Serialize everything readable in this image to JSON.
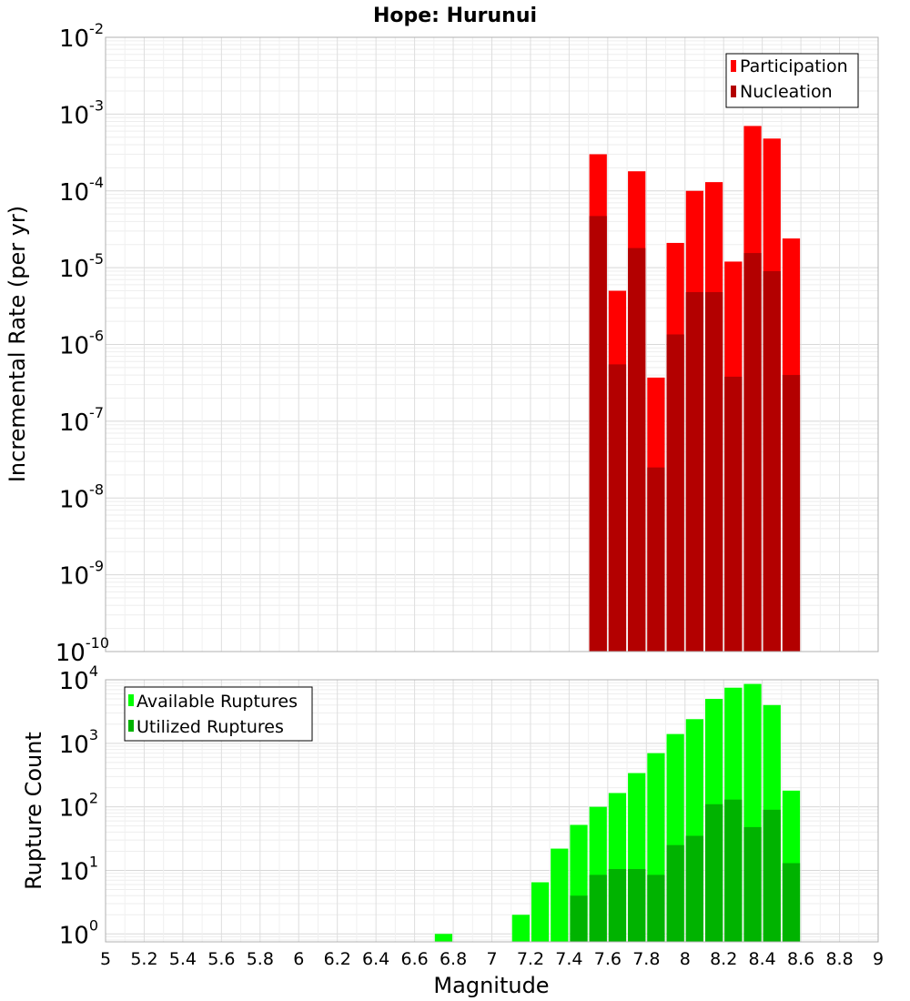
{
  "chart_data": [
    {
      "type": "bar",
      "title": "Hope: Hurunui",
      "xlabel": "",
      "ylabel": "Incremental Rate (per yr)",
      "x_bin_width": 0.1,
      "xlim": [
        5,
        9
      ],
      "ylim": [
        1e-10,
        0.01
      ],
      "yscale": "log",
      "grid": true,
      "legend_placement": "top-right",
      "x": [
        7.55,
        7.65,
        7.75,
        7.85,
        7.95,
        8.05,
        8.15,
        8.25,
        8.35,
        8.45,
        8.55
      ],
      "series": [
        {
          "name": "Participation",
          "color": "#ff0000",
          "values": [
            0.0003,
            5e-06,
            0.00018,
            3.7e-07,
            2.1e-05,
            0.0001,
            0.00013,
            1.2e-05,
            0.0007,
            0.00048,
            2.4e-05
          ]
        },
        {
          "name": "Nucleation",
          "color": "#b30000",
          "values": [
            4.7e-05,
            5.5e-07,
            1.8e-05,
            2.5e-08,
            1.35e-06,
            4.8e-06,
            4.8e-06,
            3.8e-07,
            1.55e-05,
            9e-06,
            4e-07
          ]
        }
      ],
      "y_ticks": [
        {
          "base": "10",
          "exp": "-2"
        },
        {
          "base": "10",
          "exp": "-3"
        },
        {
          "base": "10",
          "exp": "-4"
        },
        {
          "base": "10",
          "exp": "-5"
        },
        {
          "base": "10",
          "exp": "-6"
        },
        {
          "base": "10",
          "exp": "-7"
        },
        {
          "base": "10",
          "exp": "-8"
        },
        {
          "base": "10",
          "exp": "-9"
        },
        {
          "base": "10",
          "exp": "-10"
        }
      ]
    },
    {
      "type": "bar",
      "title": "",
      "xlabel": "Magnitude",
      "ylabel": "Rupture Count",
      "x_bin_width": 0.1,
      "xlim": [
        5,
        9
      ],
      "ylim": [
        0.75,
        10000
      ],
      "yscale": "log",
      "grid": true,
      "legend_placement": "top-left",
      "x": [
        6.75,
        7.15,
        7.25,
        7.35,
        7.45,
        7.55,
        7.65,
        7.75,
        7.85,
        7.95,
        8.05,
        8.15,
        8.25,
        8.35,
        8.45,
        8.55
      ],
      "series": [
        {
          "name": "Available Ruptures",
          "color": "#00ff00",
          "values": [
            1,
            2,
            6.5,
            22,
            52,
            100,
            165,
            340,
            700,
            1400,
            2400,
            5000,
            7500,
            8600,
            4000,
            180
          ]
        },
        {
          "name": "Utilized Ruptures",
          "color": "#00b300",
          "values": [
            null,
            null,
            null,
            null,
            4,
            8.5,
            10.5,
            10.5,
            8.5,
            25,
            35,
            110,
            130,
            48,
            90,
            13
          ]
        }
      ],
      "y_ticks": [
        {
          "base": "10",
          "exp": "4"
        },
        {
          "base": "10",
          "exp": "3"
        },
        {
          "base": "10",
          "exp": "2"
        },
        {
          "base": "10",
          "exp": "1"
        },
        {
          "base": "10",
          "exp": "0"
        }
      ],
      "x_tick_labels": [
        "5",
        "5.2",
        "5.4",
        "5.6",
        "5.8",
        "6",
        "6.2",
        "6.4",
        "6.6",
        "6.8",
        "7",
        "7.2",
        "7.4",
        "7.6",
        "7.8",
        "8",
        "8.2",
        "8.4",
        "8.6",
        "8.8",
        "9"
      ]
    }
  ]
}
